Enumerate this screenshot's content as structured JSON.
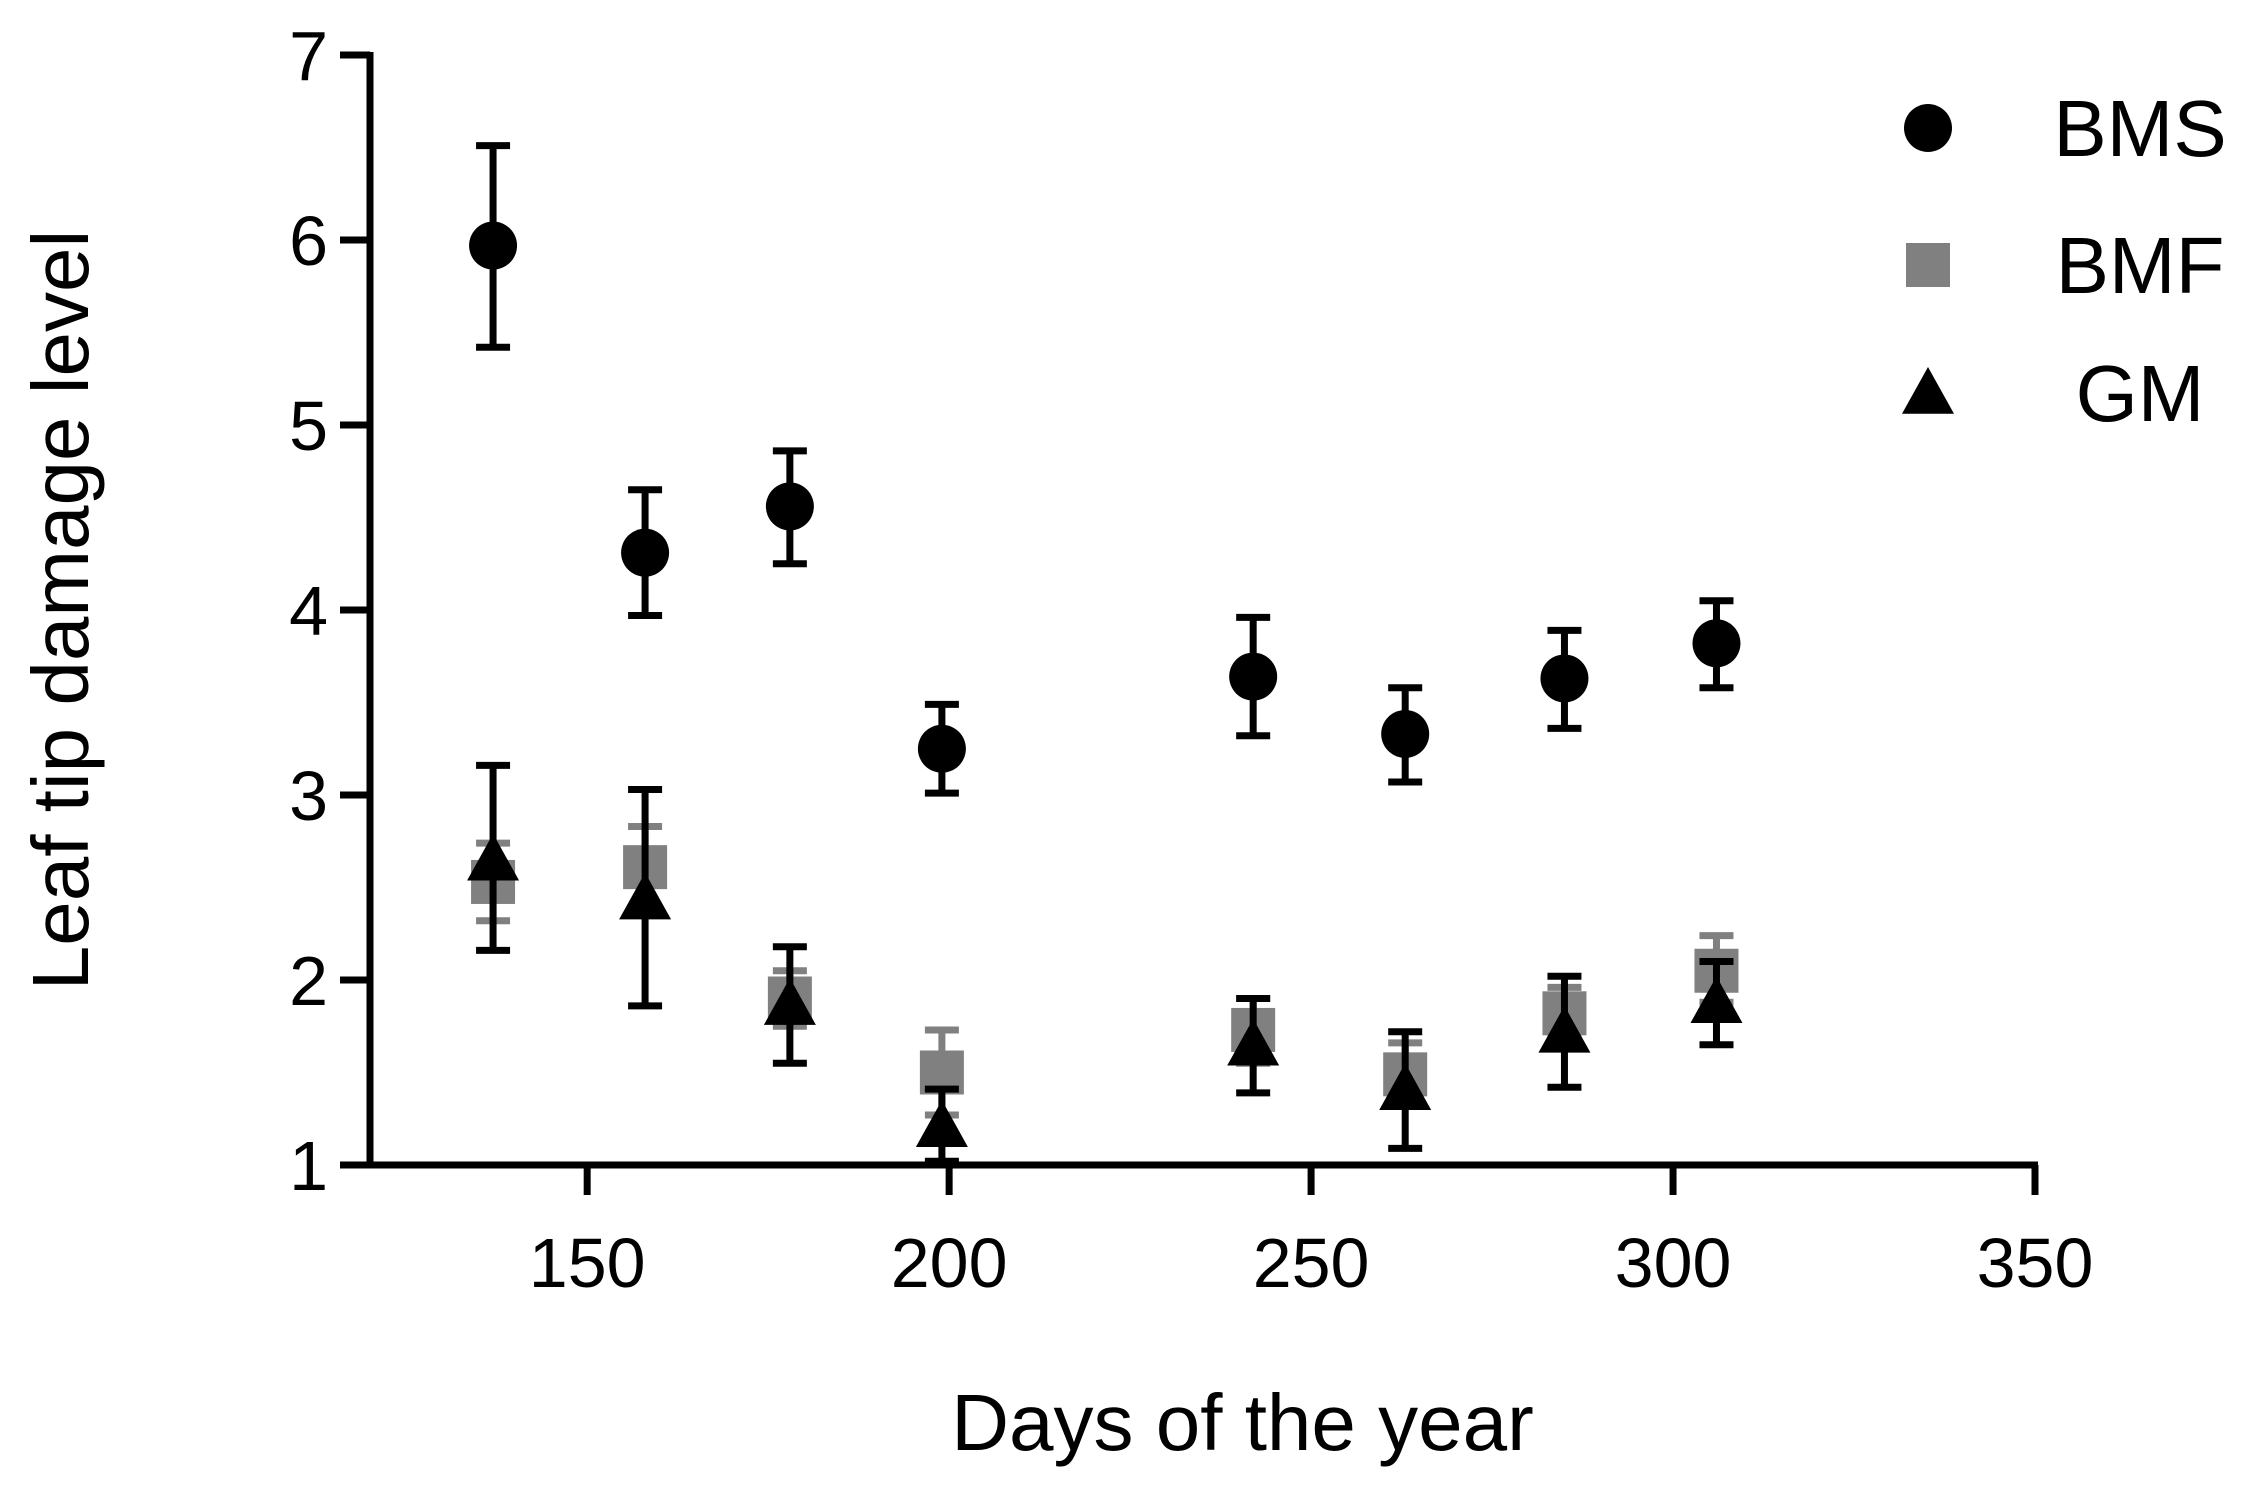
{
  "chart_data": {
    "type": "scatter",
    "xlabel": "Days of the year",
    "ylabel": "Leaf tip damage level",
    "xlim": [
      120,
      350
    ],
    "ylim": [
      1,
      7
    ],
    "xticks": [
      150,
      200,
      250,
      300,
      350
    ],
    "yticks": [
      1,
      2,
      3,
      4,
      5,
      6,
      7
    ],
    "grid": false,
    "legend_position": "top-right",
    "series": [
      {
        "name": "BMS",
        "marker": "circle",
        "color": "#000000",
        "points": [
          {
            "x": 137,
            "y": 5.97,
            "err_low": 5.42,
            "err_high": 6.51
          },
          {
            "x": 158,
            "y": 4.31,
            "err_low": 3.97,
            "err_high": 4.65
          },
          {
            "x": 178,
            "y": 4.56,
            "err_low": 4.25,
            "err_high": 4.86
          },
          {
            "x": 199,
            "y": 3.25,
            "err_low": 3.01,
            "err_high": 3.49
          },
          {
            "x": 242,
            "y": 3.64,
            "err_low": 3.32,
            "err_high": 3.96
          },
          {
            "x": 263,
            "y": 3.33,
            "err_low": 3.07,
            "err_high": 3.58
          },
          {
            "x": 285,
            "y": 3.63,
            "err_low": 3.36,
            "err_high": 3.89
          },
          {
            "x": 306,
            "y": 3.82,
            "err_low": 3.58,
            "err_high": 4.05
          }
        ]
      },
      {
        "name": "BMF",
        "marker": "square",
        "color": "#808080",
        "points": [
          {
            "x": 137,
            "y": 2.53,
            "err_low": 2.32,
            "err_high": 2.74
          },
          {
            "x": 158,
            "y": 2.61,
            "err_low": 2.39,
            "err_high": 2.83
          },
          {
            "x": 178,
            "y": 1.9,
            "err_low": 1.75,
            "err_high": 2.05
          },
          {
            "x": 199,
            "y": 1.5,
            "err_low": 1.27,
            "err_high": 1.73
          },
          {
            "x": 242,
            "y": 1.73,
            "err_low": 1.55,
            "err_high": 1.9
          },
          {
            "x": 263,
            "y": 1.49,
            "err_low": 1.32,
            "err_high": 1.66
          },
          {
            "x": 285,
            "y": 1.82,
            "err_low": 1.69,
            "err_high": 1.96
          },
          {
            "x": 306,
            "y": 2.05,
            "err_low": 1.88,
            "err_high": 2.24
          }
        ]
      },
      {
        "name": "GM",
        "marker": "triangle",
        "color": "#000000",
        "points": [
          {
            "x": 137,
            "y": 2.65,
            "err_low": 2.16,
            "err_high": 3.16
          },
          {
            "x": 158,
            "y": 2.44,
            "err_low": 1.86,
            "err_high": 3.03
          },
          {
            "x": 178,
            "y": 1.87,
            "err_low": 1.55,
            "err_high": 2.18
          },
          {
            "x": 199,
            "y": 1.21,
            "err_low": 1.02,
            "err_high": 1.41
          },
          {
            "x": 242,
            "y": 1.65,
            "err_low": 1.39,
            "err_high": 1.9
          },
          {
            "x": 263,
            "y": 1.41,
            "err_low": 1.09,
            "err_high": 1.72
          },
          {
            "x": 285,
            "y": 1.72,
            "err_low": 1.42,
            "err_high": 2.02
          },
          {
            "x": 306,
            "y": 1.88,
            "err_low": 1.65,
            "err_high": 2.1
          }
        ]
      }
    ]
  }
}
